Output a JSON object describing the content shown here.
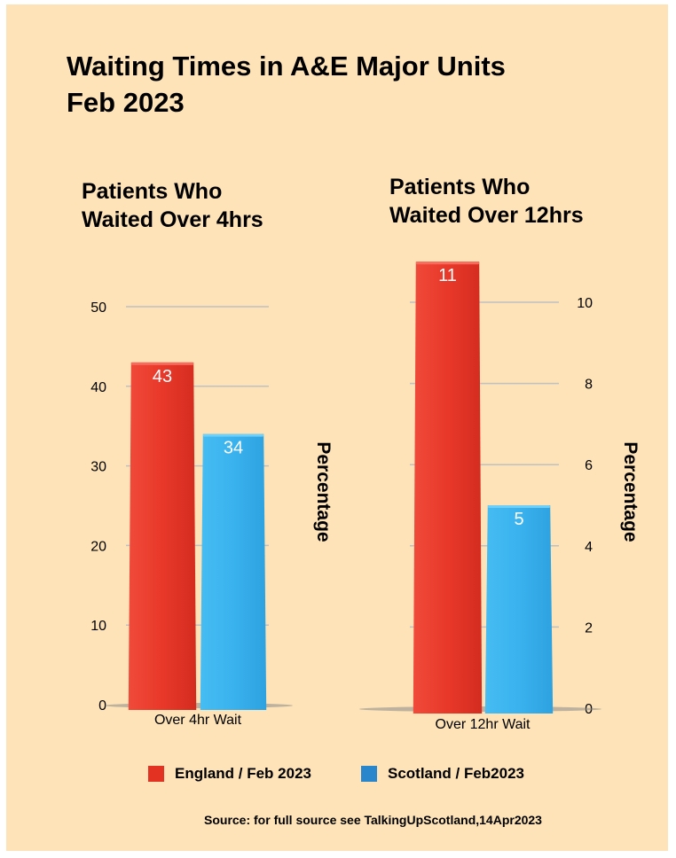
{
  "title_line1": "Waiting Times in A&E Major Units",
  "title_line2": "Feb 2023",
  "source": "Source: for full source see TalkingUpScotland,14Apr2023",
  "colors": {
    "background": "#fde3b7",
    "england": "#ec3a2c",
    "scotland": "#3cb4ee",
    "legend_england": "#e43222",
    "legend_scotland": "#2a86cc",
    "grid": "#c0c0c0"
  },
  "legend": [
    {
      "label": "England / Feb 2023",
      "color": "#e43222"
    },
    {
      "label": "Scotland / Feb2023",
      "color": "#2a86cc"
    }
  ],
  "chart_data": [
    {
      "type": "bar",
      "title_line1": "Patients Who",
      "title_line2": "Waited Over 4hrs",
      "categories": [
        "Over 4hr Wait"
      ],
      "series": [
        {
          "name": "England / Feb 2023",
          "values": [
            43
          ]
        },
        {
          "name": "Scotland / Feb2023",
          "values": [
            34
          ]
        }
      ],
      "ylabel": "Percentage",
      "ylim": [
        0,
        50
      ],
      "yticks": [
        0,
        10,
        20,
        30,
        40,
        50
      ],
      "ytick_labels": [
        "0",
        "10",
        "20",
        "30",
        "40",
        "50"
      ],
      "data_labels": [
        "43",
        "34"
      ],
      "axis_side": "left",
      "grid": true
    },
    {
      "type": "bar",
      "title_line1": "Patients Who",
      "title_line2": "Waited Over 12hrs",
      "categories": [
        "Over 12hr Wait"
      ],
      "series": [
        {
          "name": "England / Feb 2023",
          "values": [
            11
          ]
        },
        {
          "name": "Scotland / Feb2023",
          "values": [
            5
          ]
        }
      ],
      "ylabel": "Percentage",
      "ylim": [
        0,
        10
      ],
      "yticks": [
        0,
        2,
        4,
        6,
        8,
        10
      ],
      "ytick_labels": [
        "0",
        "2",
        "4",
        "6",
        "8",
        "10"
      ],
      "data_labels": [
        "11",
        "5"
      ],
      "axis_side": "right",
      "grid": true
    }
  ]
}
